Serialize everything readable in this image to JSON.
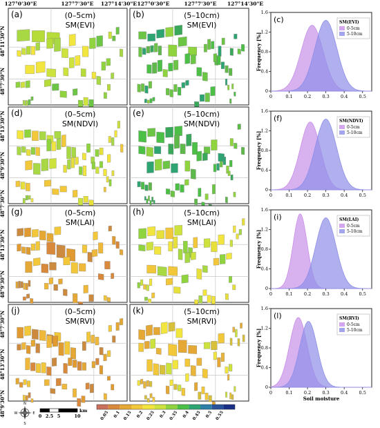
{
  "coords": {
    "top_lon": [
      "127°0'30\"E",
      "127°7'30\"E",
      "127°14'30\"E",
      "127°0'30\"E",
      "127°7'30\"E",
      "127°14'30\"E"
    ],
    "left_lat": [
      "48°11'30\"N",
      "48°7'30\"N",
      "48°13'30\"N",
      "48°9'30\"N",
      "48°7'30\"N",
      "48°13'30\"N",
      "48°9'30\"N",
      "48°7'30\"N",
      "48°13'30\"N",
      "48°9'30\"N",
      "48°7'30\"N"
    ]
  },
  "map_panels": [
    {
      "letter": "(a)",
      "depth": "(0–5cm)",
      "model": "SM(EVI)",
      "palette": "green-yellow",
      "seed": 3
    },
    {
      "letter": "(b)",
      "depth": "(5–10cm)",
      "model": "SM(EVI)",
      "palette": "green",
      "seed": 7
    },
    {
      "letter": "(d)",
      "depth": "(0–5cm)",
      "model": "SM(NDVI)",
      "palette": "yellow-green",
      "seed": 11
    },
    {
      "letter": "(e)",
      "depth": "(5–10cm)",
      "model": "SM(NDVI)",
      "palette": "green",
      "seed": 13
    },
    {
      "letter": "(g)",
      "depth": "(0–5cm)",
      "model": "SM(LAI)",
      "palette": "orange",
      "seed": 17
    },
    {
      "letter": "(h)",
      "depth": "(5–10cm)",
      "model": "SM(LAI)",
      "palette": "yellow-green",
      "seed": 19
    },
    {
      "letter": "(j)",
      "depth": "(0–5cm)",
      "model": "SM(RVI)",
      "palette": "orange",
      "seed": 23
    },
    {
      "letter": "(k)",
      "depth": "(5–10cm)",
      "model": "SM(RVI)",
      "palette": "yellow-orange",
      "seed": 29
    }
  ],
  "scale_bar": {
    "ticks": [
      "0",
      "2.5",
      "5",
      "10"
    ],
    "unit": "km"
  },
  "compass": {
    "n": "N",
    "s": "S",
    "e": "E",
    "w": "W"
  },
  "colorbar": {
    "labels": [
      "0.05",
      "0.1",
      "0.15",
      "0.2",
      "0.25",
      "0.3",
      "0.35",
      "0.4",
      "0.45",
      "0.5",
      "0.55"
    ],
    "colors": [
      "#c8705c",
      "#d8893c",
      "#e6a834",
      "#f2c83a",
      "#f2e63e",
      "#cde23c",
      "#8fd43e",
      "#4cbf46",
      "#2ea472",
      "#2e7fa8",
      "#28529a",
      "#1a2f86"
    ]
  },
  "chart_data": [
    {
      "type": "area",
      "letter": "(c)",
      "legend_title": "SM(EVI)",
      "ylabel": "Frequency [%]",
      "xlabel": "",
      "xlim": [
        0,
        0.55
      ],
      "ylim": [
        0,
        1.6
      ],
      "xticks": [
        "0",
        "0.1",
        "0.2",
        "0.3",
        "0.4",
        "0.5"
      ],
      "yticks": [
        "0",
        "0.4",
        "0.8",
        "1.2",
        "1.6"
      ],
      "series": [
        {
          "name": "0-5cm",
          "mean": 0.225,
          "sd": 0.06,
          "peak": 1.34,
          "color": "#c890e8"
        },
        {
          "name": "5-10cm",
          "mean": 0.3,
          "sd": 0.06,
          "peak": 1.44,
          "color": "#8e8ee8"
        }
      ]
    },
    {
      "type": "area",
      "letter": "(f)",
      "legend_title": "SM(NDVI)",
      "ylabel": "Frequency [%]",
      "xlabel": "",
      "xlim": [
        0,
        0.55
      ],
      "ylim": [
        0,
        1.6
      ],
      "xticks": [
        "0",
        "0.1",
        "0.2",
        "0.3",
        "0.4",
        "0.5"
      ],
      "yticks": [
        "0",
        "0.4",
        "0.8",
        "1.2",
        "1.6"
      ],
      "series": [
        {
          "name": "0-5cm",
          "mean": 0.215,
          "sd": 0.055,
          "peak": 1.38,
          "color": "#c890e8"
        },
        {
          "name": "5-10cm",
          "mean": 0.3,
          "sd": 0.058,
          "peak": 1.44,
          "color": "#8e8ee8"
        }
      ]
    },
    {
      "type": "area",
      "letter": "(i)",
      "legend_title": "SM(LAI)",
      "ylabel": "Frequency [%]",
      "xlabel": "",
      "xlim": [
        0,
        0.55
      ],
      "ylim": [
        0,
        1.6
      ],
      "xticks": [
        "0",
        "0.1",
        "0.2",
        "0.3",
        "0.4",
        "0.5"
      ],
      "yticks": [
        "0",
        "0.4",
        "0.8",
        "1.2",
        "1.6"
      ],
      "series": [
        {
          "name": "0-5cm",
          "mean": 0.16,
          "sd": 0.038,
          "peak": 1.52,
          "color": "#c890e8"
        },
        {
          "name": "5-10cm",
          "mean": 0.3,
          "sd": 0.055,
          "peak": 1.44,
          "color": "#8e8ee8"
        }
      ]
    },
    {
      "type": "area",
      "letter": "(l)",
      "legend_title": "SM(RVI)",
      "ylabel": "Frequency [%]",
      "xlabel": "Soil moisture",
      "xlim": [
        0,
        0.55
      ],
      "ylim": [
        0,
        1.6
      ],
      "xticks": [
        "0",
        "0.1",
        "0.2",
        "0.3",
        "0.4",
        "0.5"
      ],
      "yticks": [
        "0",
        "0.4",
        "0.8",
        "1.2",
        "1.6"
      ],
      "series": [
        {
          "name": "0-5cm",
          "mean": 0.15,
          "sd": 0.048,
          "peak": 1.42,
          "color": "#c890e8"
        },
        {
          "name": "5-10cm",
          "mean": 0.205,
          "sd": 0.048,
          "peak": 1.34,
          "color": "#8e8ee8"
        }
      ]
    }
  ]
}
